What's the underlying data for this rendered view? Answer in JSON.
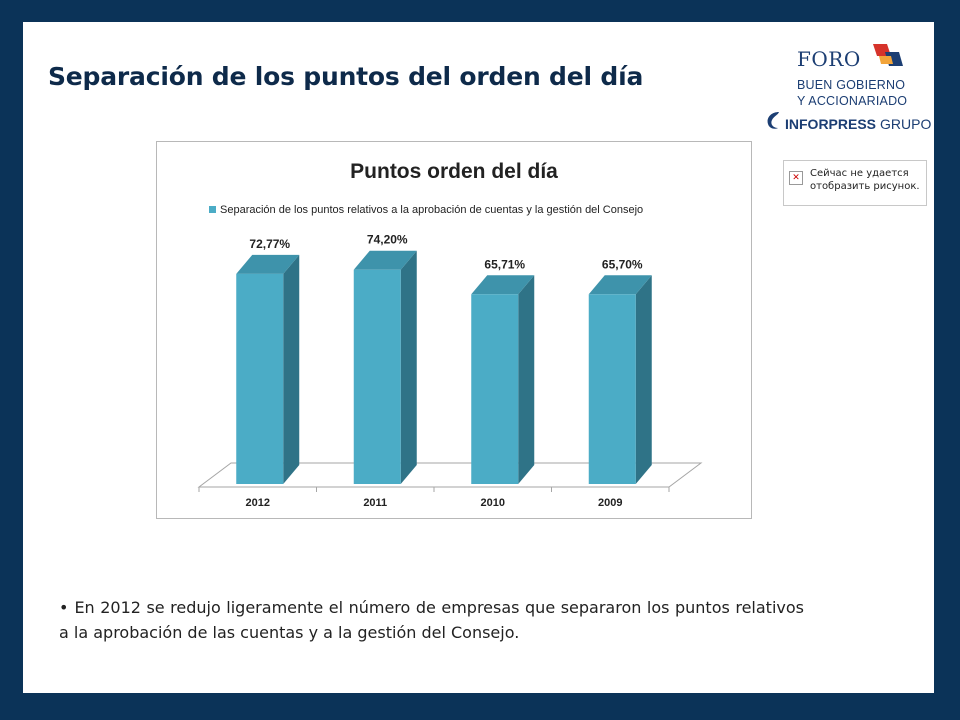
{
  "slide": {
    "title": "Separación de los puntos del orden del día",
    "bullet": "En 2012 se redujo ligeramente el número de empresas que separaron los puntos relativos a la aprobación de las cuentas y a la gestión del Consejo."
  },
  "logos": {
    "foro": {
      "word": "FORO",
      "line1": "BUEN GOBIERNO",
      "line2": "Y ACCIONARIADO"
    },
    "inforpress": {
      "word_bold": "INFORPRESS",
      "word_light": "GRUPO"
    }
  },
  "broken_image": {
    "text": "Сейчас не удается отобразить рисунок."
  },
  "colors": {
    "background": "#0b3358",
    "bar_front": "#4bacc6",
    "bar_side": "#2f7387",
    "bar_top": "#3e93ab",
    "title": "#0e2a4a"
  },
  "chart_data": {
    "type": "bar",
    "title": "Puntos orden del día",
    "legend": {
      "position": "top",
      "entries": [
        "Separación de los puntos relativos a la aprobación de cuentas y la gestión del Consejo"
      ]
    },
    "categories": [
      "2012",
      "2011",
      "2010",
      "2009"
    ],
    "series": [
      {
        "name": "Separación de los puntos relativos a la aprobación de cuentas y la gestión del Consejo",
        "values": [
          72.77,
          74.2,
          65.71,
          65.7
        ],
        "labels": [
          "72,77%",
          "74,20%",
          "65,71%",
          "65,70%"
        ]
      }
    ],
    "ylim": [
      0,
      80
    ],
    "grid": false,
    "style": "3d-column"
  }
}
